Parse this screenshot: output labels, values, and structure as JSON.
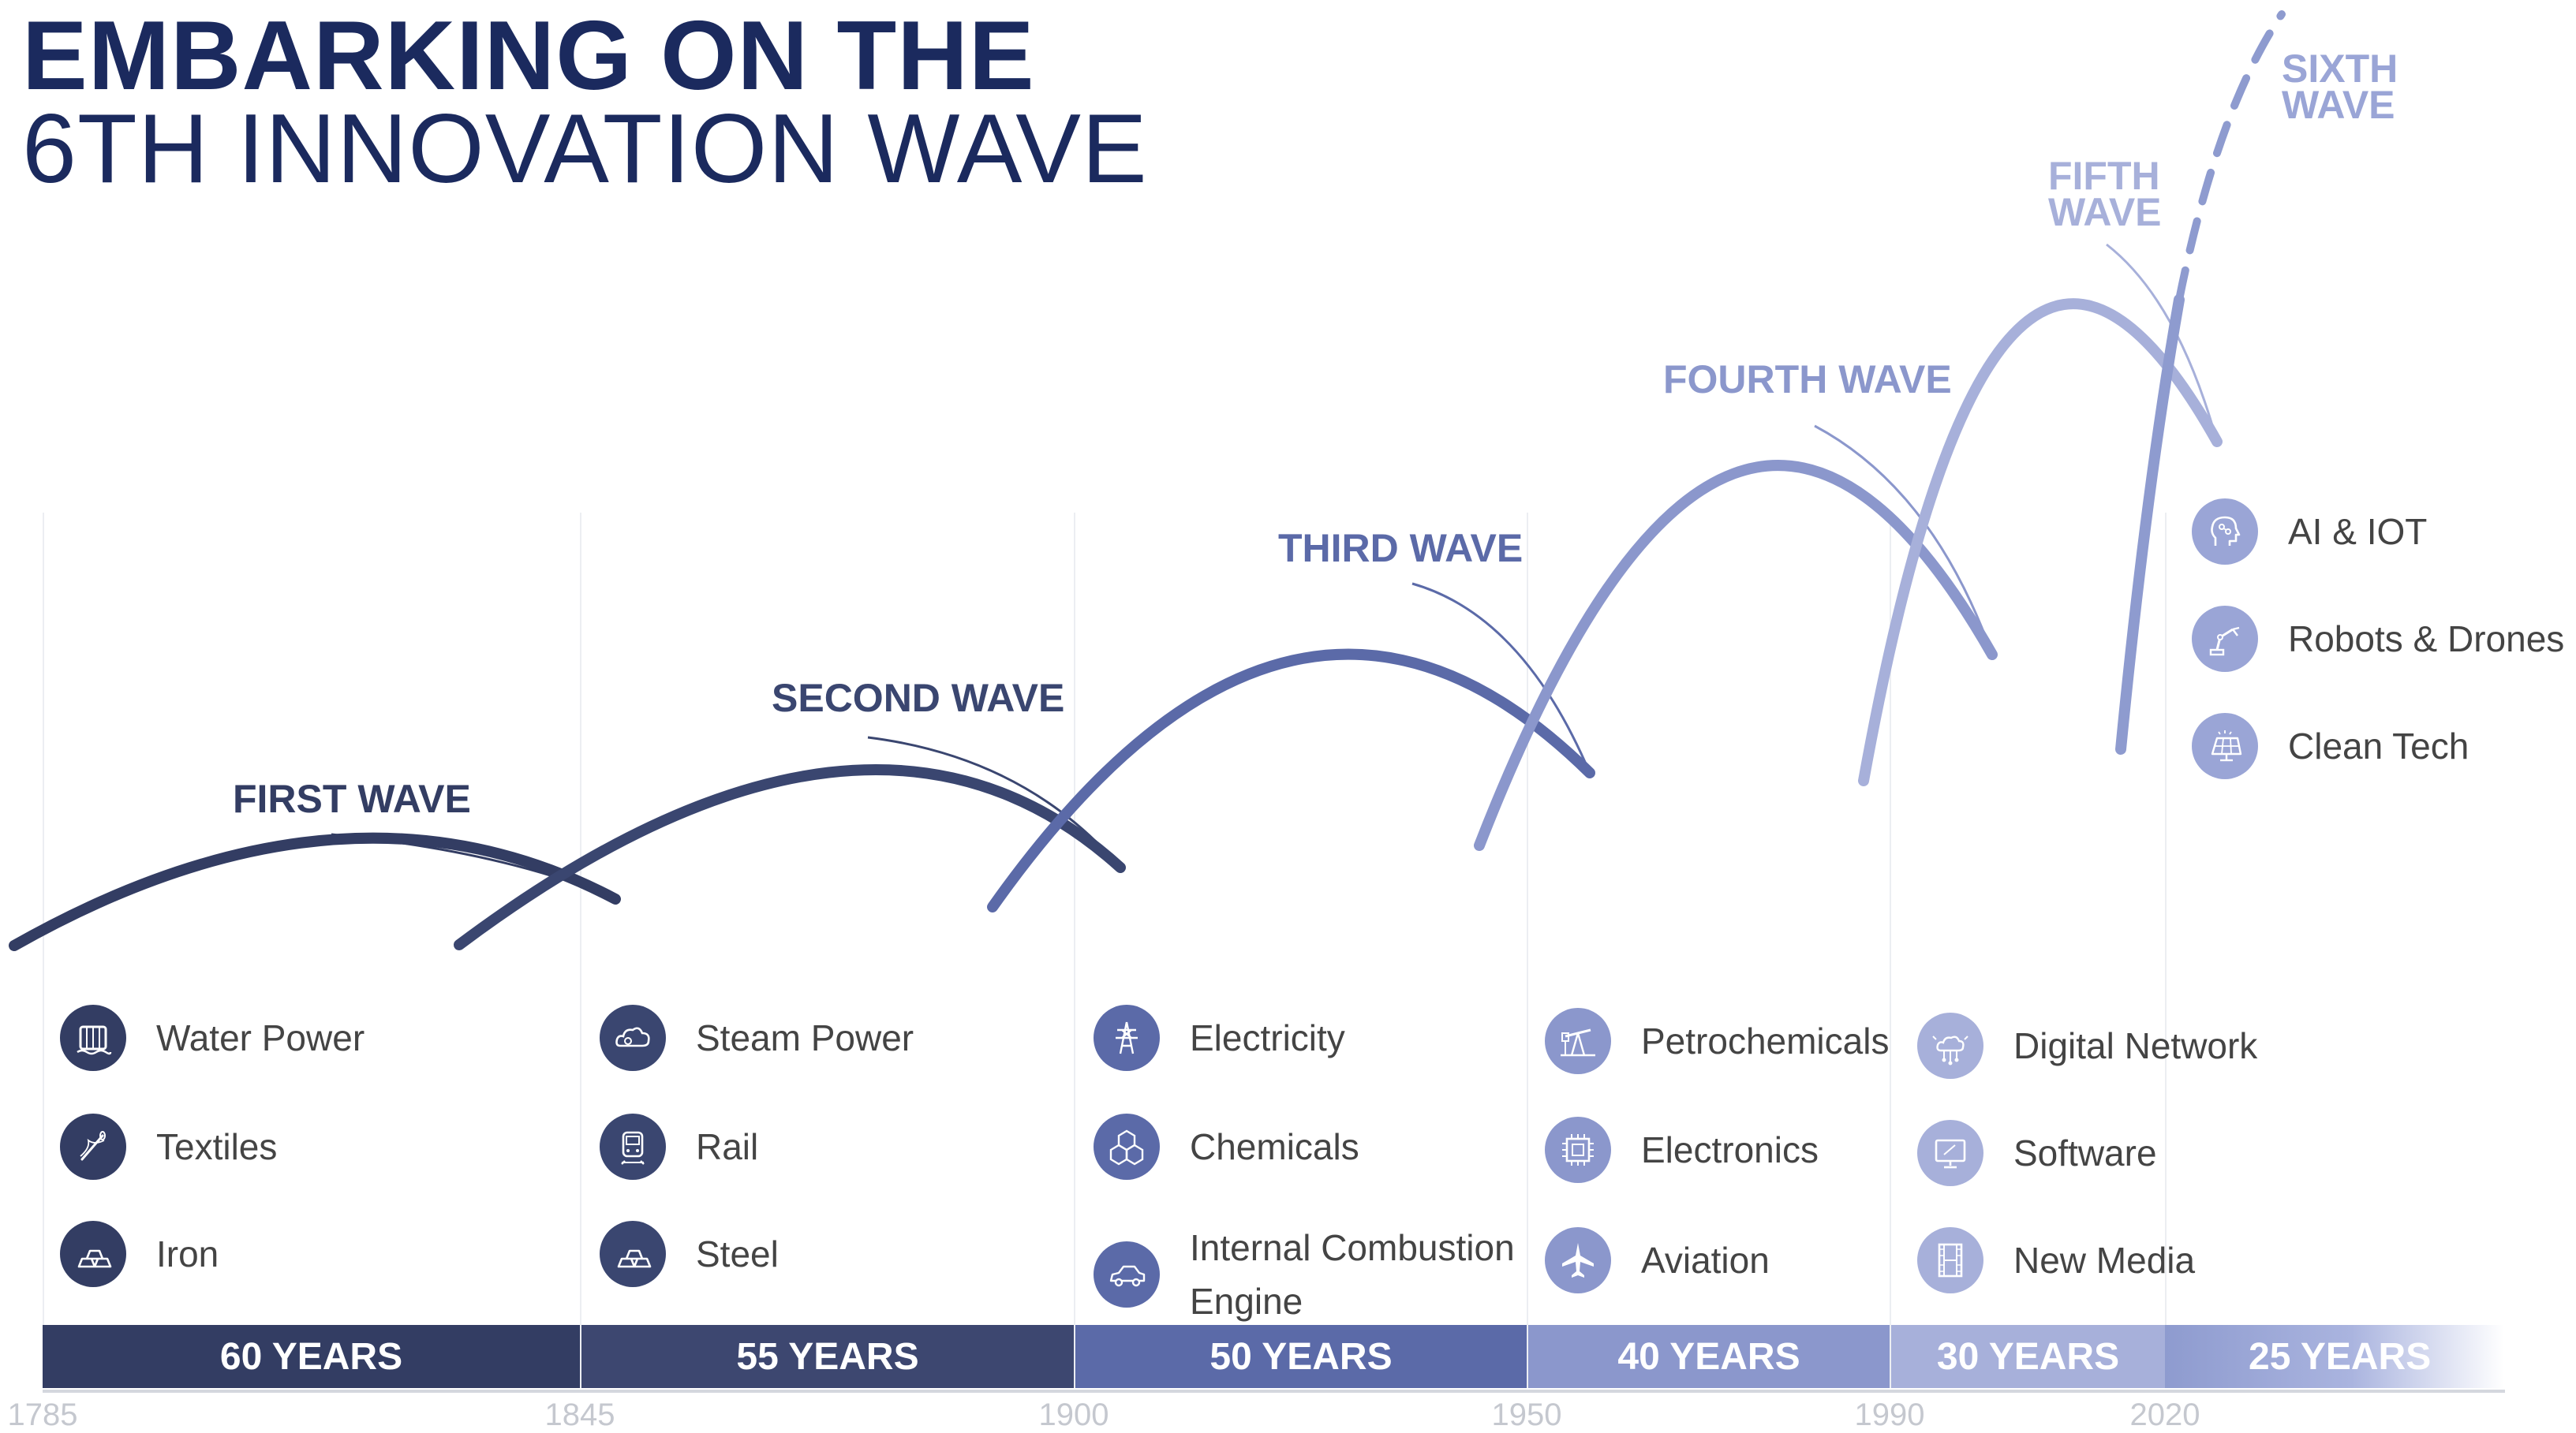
{
  "title": {
    "line1": "EMBARKING ON THE",
    "line2": "6TH INNOVATION WAVE"
  },
  "waves": [
    {
      "label": "FIRST WAVE",
      "color": "#333d63"
    },
    {
      "label": "SECOND WAVE",
      "color": "#3a4670"
    },
    {
      "label": "THIRD WAVE",
      "color": "#5b6aa8"
    },
    {
      "label": "FOURTH WAVE",
      "color": "#8b97cc"
    },
    {
      "label": "FIFTH WAVE",
      "color": "#a7b0da"
    },
    {
      "label": "SIXTH WAVE",
      "color": "#9aa5d6"
    }
  ],
  "technologies": [
    {
      "label": "Water Power",
      "icon": "water-wheel-icon"
    },
    {
      "label": "Textiles",
      "icon": "needle-icon"
    },
    {
      "label": "Iron",
      "icon": "iron-ingots-icon"
    },
    {
      "label": "Steam Power",
      "icon": "steam-cloud-icon"
    },
    {
      "label": "Rail",
      "icon": "train-icon"
    },
    {
      "label": "Steel",
      "icon": "steel-ingots-icon"
    },
    {
      "label": "Electricity",
      "icon": "power-pylon-icon"
    },
    {
      "label": "Chemicals",
      "icon": "hexagon-molecule-icon"
    },
    {
      "label": "Internal Combustion Engine",
      "icon": "car-icon"
    },
    {
      "label": "Petrochemicals",
      "icon": "oil-pump-icon"
    },
    {
      "label": "Electronics",
      "icon": "microchip-icon"
    },
    {
      "label": "Aviation",
      "icon": "airplane-icon"
    },
    {
      "label": "Digital Network",
      "icon": "network-cloud-icon"
    },
    {
      "label": "Software",
      "icon": "monitor-icon"
    },
    {
      "label": "New Media",
      "icon": "film-strip-icon"
    },
    {
      "label": "AI & IOT",
      "icon": "ai-head-icon"
    },
    {
      "label": "Robots & Drones",
      "icon": "robot-arm-icon"
    },
    {
      "label": "Clean Tech",
      "icon": "solar-panel-icon"
    }
  ],
  "durations": [
    {
      "label": "60 YEARS",
      "color": "#333d63"
    },
    {
      "label": "55 YEARS",
      "color": "#3d4770"
    },
    {
      "label": "50 YEARS",
      "color": "#5b6aa8"
    },
    {
      "label": "40 YEARS",
      "color": "#8b97cc"
    },
    {
      "label": "30 YEARS",
      "color": "#a7b0da"
    },
    {
      "label": "25 YEARS",
      "color": "#8e9bcf"
    }
  ],
  "years": [
    "1785",
    "1845",
    "1900",
    "1950",
    "1990",
    "2020"
  ]
}
